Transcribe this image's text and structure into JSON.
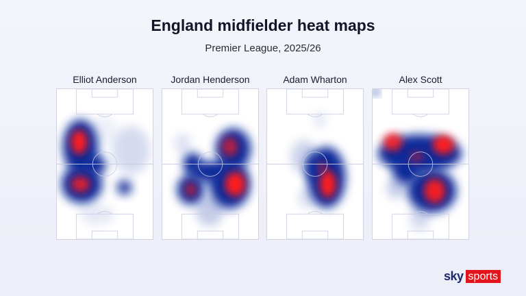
{
  "header": {
    "title": "England midfielder heat maps",
    "subtitle": "Premier League, 2025/26"
  },
  "players": [
    {
      "name": "Elliot Anderson"
    },
    {
      "name": "Jordan Henderson"
    },
    {
      "name": "Adam Wharton"
    },
    {
      "name": "Alex Scott"
    }
  ],
  "colors": {
    "hot": "#ff1a1a",
    "mid": "#0a2a9a",
    "pitch_lines": "#c8cbe0"
  },
  "logo": {
    "sky": "sky",
    "sports": "sports"
  }
}
